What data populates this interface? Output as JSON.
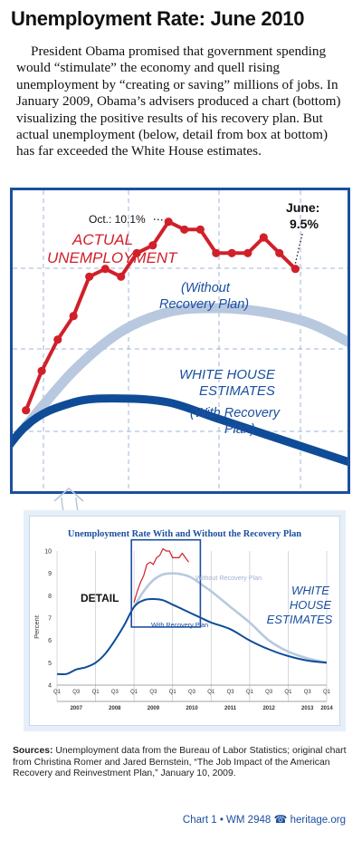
{
  "title": "Unemployment Rate: June 2010",
  "intro": "President Obama promised that government spending would “stimulate” the economy and quell rising unemployment by “creating or saving” millions of jobs. In January 2009, Obama’s advisers produced a chart (bottom) visualizing the positive results of his recovery plan. But actual unemployment (below, detail from box at bottom) has far exceeded the White House estimates.",
  "top_chart": {
    "actual_label_1": "ACTUAL",
    "actual_label_2": "UNEMPLOYMENT",
    "oct_label": "Oct.: 10.1%",
    "june_label_1": "June:",
    "june_label_2": "9.5%",
    "without_label_1": "(Without",
    "without_label_2": "Recovery Plan)",
    "wh_label_1": "WHITE HOUSE",
    "wh_label_2": "ESTIMATES",
    "with_label_1": "(With Recovery",
    "with_label_2": "Plan)"
  },
  "colors": {
    "actual": "#d0202a",
    "without": "#b8c8df",
    "with": "#0f4c98",
    "frame": "#1b4fa0"
  },
  "chart_data": [
    {
      "type": "line",
      "title": "Unemployment Rate With and Without the Recovery Plan",
      "ylabel": "Percent",
      "ylim": [
        4,
        10
      ],
      "yticks": [
        4,
        5,
        6,
        7,
        8,
        9,
        10
      ],
      "xlim": [
        2007.0,
        2014.0
      ],
      "xticks": [
        "Q1",
        "Q3",
        "Q1",
        "Q3",
        "Q1",
        "Q3",
        "Q1",
        "Q3",
        "Q1",
        "Q3",
        "Q1",
        "Q3",
        "Q1",
        "Q3",
        "Q1"
      ],
      "year_labels": [
        "2007",
        "2008",
        "2009",
        "2010",
        "2011",
        "2012",
        "2013",
        "2014"
      ],
      "inline_labels": {
        "detail": "DETAIL",
        "without": "Without Recovery Plan",
        "with": "With Recovery Plan",
        "wh_1": "WHITE",
        "wh_2": "HOUSE",
        "wh_3": "ESTIMATES"
      },
      "series": [
        {
          "name": "With Recovery Plan",
          "x": [
            2007.0,
            2007.25,
            2007.5,
            2007.75,
            2008.0,
            2008.25,
            2008.5,
            2008.75,
            2009.0,
            2009.25,
            2009.5,
            2009.75,
            2010.0,
            2010.25,
            2010.5,
            2010.75,
            2011.0,
            2011.5,
            2012.0,
            2012.5,
            2013.0,
            2013.5,
            2014.0
          ],
          "values": [
            4.5,
            4.5,
            4.7,
            4.8,
            5.0,
            5.4,
            6.0,
            6.7,
            7.5,
            7.8,
            7.85,
            7.8,
            7.6,
            7.4,
            7.2,
            7.0,
            6.8,
            6.5,
            6.0,
            5.6,
            5.3,
            5.1,
            5.0
          ]
        },
        {
          "name": "Without Recovery Plan",
          "x": [
            2009.0,
            2009.25,
            2009.5,
            2009.75,
            2010.0,
            2010.25,
            2010.5,
            2010.75,
            2011.0,
            2011.5,
            2012.0,
            2012.5,
            2013.0,
            2013.5,
            2014.0
          ],
          "values": [
            7.5,
            8.2,
            8.7,
            8.95,
            9.0,
            8.95,
            8.8,
            8.5,
            8.2,
            7.5,
            6.8,
            6.0,
            5.5,
            5.2,
            5.0
          ]
        },
        {
          "name": "Actual Unemployment",
          "x": [
            2009.0,
            2009.083,
            2009.167,
            2009.25,
            2009.333,
            2009.417,
            2009.5,
            2009.583,
            2009.667,
            2009.75,
            2009.833,
            2009.917,
            2010.0,
            2010.083,
            2010.167,
            2010.25,
            2010.333,
            2010.417
          ],
          "values": [
            7.7,
            8.2,
            8.6,
            8.9,
            9.4,
            9.5,
            9.4,
            9.7,
            9.8,
            10.1,
            10.0,
            10.0,
            9.7,
            9.7,
            9.7,
            9.9,
            9.7,
            9.5
          ]
        }
      ]
    }
  ],
  "sources": {
    "label": "Sources:",
    "text": "Unemployment data from the Bureau of Labor Statistics; original chart from Christina Romer and Jared Bernstein, “The Job Impact of the American Recovery and Reinvestment Plan,” January 10, 2009."
  },
  "credit": {
    "chart": "Chart 1",
    "sep": "•",
    "wm": "WM 2948",
    "site": "heritage.org"
  }
}
